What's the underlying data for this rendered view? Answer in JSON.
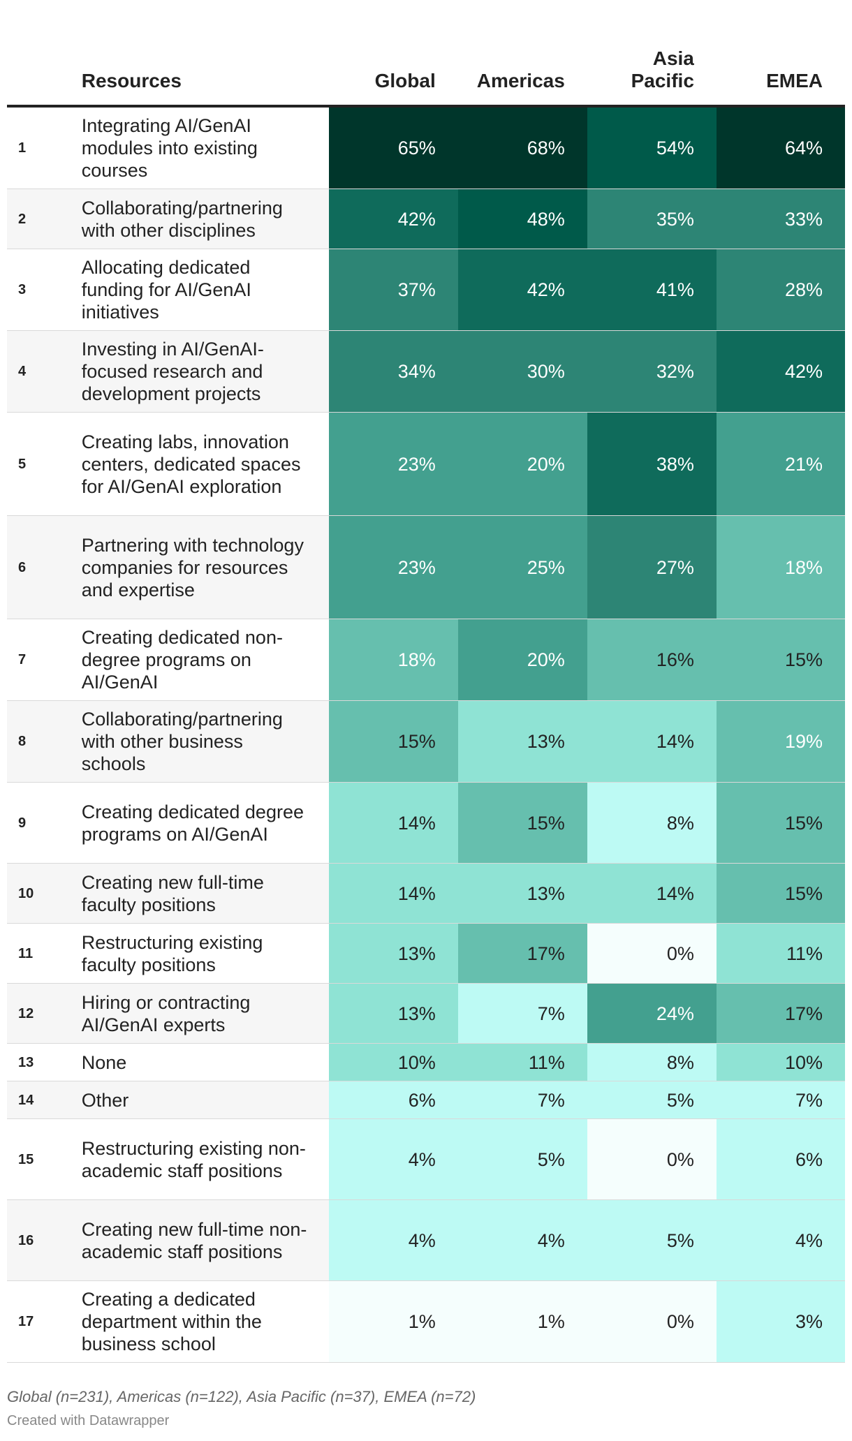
{
  "chart_data": {
    "type": "table",
    "columns": [
      "",
      "Resources",
      "Global",
      "Americas",
      "Asia\nPacific",
      "EMEA"
    ],
    "rows": [
      {
        "rank": "1",
        "resource": "Integrating AI/GenAI modules into existing courses",
        "values": [
          65,
          68,
          54,
          64
        ],
        "labels": [
          "65%",
          "68%",
          "54%",
          "64%"
        ]
      },
      {
        "rank": "2",
        "resource": "Collaborating/partnering with other disciplines",
        "values": [
          42,
          48,
          35,
          33
        ],
        "labels": [
          "42%",
          "48%",
          "35%",
          "33%"
        ]
      },
      {
        "rank": "3",
        "resource": "Allocating dedicated funding for AI/GenAI initiatives",
        "values": [
          37,
          42,
          41,
          28
        ],
        "labels": [
          "37%",
          "42%",
          "41%",
          "28%"
        ]
      },
      {
        "rank": "4",
        "resource": "Investing in AI/GenAI-focused research and development projects",
        "values": [
          34,
          30,
          32,
          42
        ],
        "labels": [
          "34%",
          "30%",
          "32%",
          "42%"
        ]
      },
      {
        "rank": "5",
        "resource": "Creating labs, innovation centers, dedicated spaces for AI/GenAI exploration",
        "values": [
          23,
          20,
          38,
          21
        ],
        "labels": [
          "23%",
          "20%",
          "38%",
          "21%"
        ]
      },
      {
        "rank": "6",
        "resource": "Partnering with technology companies for resources and expertise",
        "values": [
          23,
          25,
          27,
          18
        ],
        "labels": [
          "23%",
          "25%",
          "27%",
          "18%"
        ]
      },
      {
        "rank": "7",
        "resource": "Creating dedicated non-degree programs on AI/GenAI",
        "values": [
          18,
          20,
          16,
          15
        ],
        "labels": [
          "18%",
          "20%",
          "16%",
          "15%"
        ]
      },
      {
        "rank": "8",
        "resource": "Collaborating/partnering with other business schools",
        "values": [
          15,
          13,
          14,
          19
        ],
        "labels": [
          "15%",
          "13%",
          "14%",
          "19%"
        ]
      },
      {
        "rank": "9",
        "resource": "Creating dedicated degree programs on AI/GenAI",
        "values": [
          14,
          15,
          8,
          15
        ],
        "labels": [
          "14%",
          "15%",
          "8%",
          "15%"
        ]
      },
      {
        "rank": "10",
        "resource": "Creating new full-time faculty positions",
        "values": [
          14,
          13,
          14,
          15
        ],
        "labels": [
          "14%",
          "13%",
          "14%",
          "15%"
        ]
      },
      {
        "rank": "11",
        "resource": "Restructuring existing faculty positions",
        "values": [
          13,
          17,
          0,
          11
        ],
        "labels": [
          "13%",
          "17%",
          "0%",
          "11%"
        ]
      },
      {
        "rank": "12",
        "resource": "Hiring or contracting AI/GenAI experts",
        "values": [
          13,
          7,
          24,
          17
        ],
        "labels": [
          "13%",
          "7%",
          "24%",
          "17%"
        ]
      },
      {
        "rank": "13",
        "resource": "None",
        "values": [
          10,
          11,
          8,
          10
        ],
        "labels": [
          "10%",
          "11%",
          "8%",
          "10%"
        ]
      },
      {
        "rank": "14",
        "resource": "Other",
        "values": [
          6,
          7,
          5,
          7
        ],
        "labels": [
          "6%",
          "7%",
          "5%",
          "7%"
        ]
      },
      {
        "rank": "15",
        "resource": "Restructuring existing non-academic staff positions",
        "values": [
          4,
          5,
          0,
          6
        ],
        "labels": [
          "4%",
          "5%",
          "0%",
          "6%"
        ]
      },
      {
        "rank": "16",
        "resource": "Creating new full-time non-academic staff positions",
        "values": [
          4,
          4,
          5,
          4
        ],
        "labels": [
          "4%",
          "4%",
          "5%",
          "4%"
        ]
      },
      {
        "rank": "17",
        "resource": "Creating a dedicated department within the business school",
        "values": [
          1,
          1,
          0,
          3
        ],
        "labels": [
          "1%",
          "1%",
          "0%",
          "3%"
        ]
      }
    ],
    "color_scale": [
      "#f5fefd",
      "#bdfaf4",
      "#8fe3d4",
      "#66bfae",
      "#43a08f",
      "#2d8575",
      "#0f6b5b",
      "#005a4a",
      "#00362b"
    ]
  },
  "footer": {
    "note": "Global (n=231), Americas (n=122), Asia Pacific (n=37), EMEA (n=72)",
    "credit": "Created with Datawrapper"
  }
}
